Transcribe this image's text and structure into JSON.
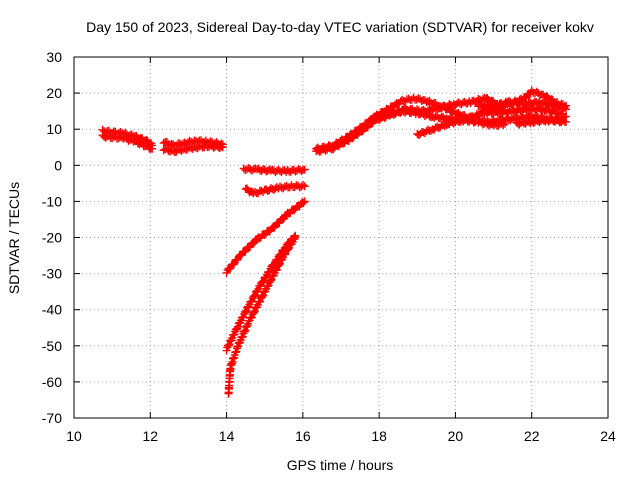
{
  "chart_data": {
    "type": "scatter",
    "title": "Day 150 of 2023, Sidereal Day-to-day VTEC variation (SDTVAR) for receiver kokv",
    "xlabel": "GPS time / hours",
    "ylabel": "SDTVAR / TECUs",
    "xlim": [
      10,
      24
    ],
    "ylim": [
      -70,
      30
    ],
    "xticks": [
      10,
      12,
      14,
      16,
      18,
      20,
      22,
      24
    ],
    "yticks": [
      -70,
      -60,
      -50,
      -40,
      -30,
      -20,
      -10,
      0,
      10,
      20,
      30
    ],
    "grid": true,
    "marker": "plus",
    "color": "#ff0000",
    "series": [
      {
        "tracks": [
          [
            [
              10.75,
              9.5
            ],
            [
              11.0,
              9.2
            ],
            [
              11.3,
              8.8
            ],
            [
              11.6,
              8.0
            ],
            [
              11.9,
              6.8
            ],
            [
              12.05,
              5.5
            ]
          ],
          [
            [
              10.75,
              8.0
            ],
            [
              11.0,
              7.8
            ],
            [
              11.3,
              7.5
            ],
            [
              11.6,
              6.6
            ],
            [
              11.9,
              5.2
            ],
            [
              12.05,
              4.6
            ]
          ],
          [
            [
              12.35,
              6.5
            ],
            [
              12.6,
              5.5
            ],
            [
              12.9,
              6.2
            ],
            [
              13.2,
              6.8
            ],
            [
              13.5,
              6.5
            ],
            [
              13.9,
              5.8
            ]
          ],
          [
            [
              12.35,
              4.5
            ],
            [
              12.6,
              3.8
            ],
            [
              12.9,
              4.5
            ],
            [
              13.2,
              5.0
            ],
            [
              13.5,
              5.3
            ],
            [
              13.9,
              5.0
            ]
          ],
          [
            [
              14.45,
              -1.0
            ],
            [
              14.8,
              -1.2
            ],
            [
              15.2,
              -1.5
            ],
            [
              15.6,
              -1.6
            ],
            [
              16.05,
              -1.2
            ]
          ],
          [
            [
              14.5,
              -6.5
            ],
            [
              14.7,
              -7.8
            ],
            [
              15.0,
              -7.0
            ],
            [
              15.4,
              -6.2
            ],
            [
              15.7,
              -5.8
            ],
            [
              16.05,
              -5.8
            ]
          ],
          [
            [
              14.0,
              -29.5
            ],
            [
              14.4,
              -24.5
            ],
            [
              14.8,
              -20.5
            ],
            [
              15.2,
              -17.5
            ],
            [
              15.6,
              -13.5
            ],
            [
              16.05,
              -10.0
            ]
          ],
          [
            [
              14.0,
              -51.0
            ],
            [
              14.3,
              -44.5
            ],
            [
              14.6,
              -38.5
            ],
            [
              14.9,
              -33.0
            ],
            [
              15.2,
              -28.0
            ],
            [
              15.55,
              -22.5
            ],
            [
              15.8,
              -19.5
            ]
          ],
          [
            [
              14.05,
              -63.5
            ],
            [
              14.1,
              -56.0
            ],
            [
              14.3,
              -50.0
            ],
            [
              14.6,
              -43.0
            ],
            [
              14.9,
              -37.0
            ],
            [
              15.2,
              -31.0
            ],
            [
              15.5,
              -25.0
            ],
            [
              15.8,
              -20.0
            ]
          ],
          [
            [
              16.35,
              4.5
            ],
            [
              16.8,
              5.5
            ],
            [
              17.2,
              8.0
            ],
            [
              17.6,
              11.0
            ],
            [
              17.9,
              13.5
            ],
            [
              18.3,
              16.0
            ],
            [
              18.6,
              17.8
            ],
            [
              18.9,
              18.5
            ],
            [
              19.2,
              18.0
            ],
            [
              19.6,
              16.5
            ],
            [
              20.0,
              14.5
            ],
            [
              20.4,
              13.0
            ],
            [
              20.8,
              12.0
            ],
            [
              21.2,
              12.5
            ],
            [
              21.6,
              13.0
            ],
            [
              22.0,
              13.5
            ],
            [
              22.4,
              13.0
            ],
            [
              22.8,
              12.5
            ]
          ],
          [
            [
              16.35,
              3.8
            ],
            [
              16.8,
              4.8
            ],
            [
              17.2,
              7.0
            ],
            [
              17.6,
              10.0
            ],
            [
              17.9,
              12.5
            ],
            [
              18.3,
              14.0
            ],
            [
              18.6,
              15.0
            ],
            [
              19.0,
              14.5
            ],
            [
              19.4,
              13.5
            ],
            [
              19.8,
              13.0
            ],
            [
              20.2,
              12.5
            ],
            [
              20.6,
              12.0
            ],
            [
              21.0,
              11.0
            ],
            [
              21.3,
              11.5
            ]
          ],
          [
            [
              17.8,
              12.8
            ],
            [
              18.2,
              13.8
            ],
            [
              18.7,
              15.5
            ],
            [
              19.2,
              15.0
            ],
            [
              19.6,
              16.0
            ],
            [
              20.0,
              17.0
            ],
            [
              20.4,
              17.5
            ],
            [
              20.8,
              18.5
            ],
            [
              21.1,
              17.0
            ]
          ],
          [
            [
              19.0,
              8.5
            ],
            [
              19.4,
              10.0
            ],
            [
              19.8,
              11.5
            ],
            [
              20.2,
              12.5
            ],
            [
              20.6,
              14.0
            ],
            [
              21.0,
              15.5
            ],
            [
              21.4,
              17.0
            ],
            [
              21.8,
              18.5
            ],
            [
              22.0,
              20.5
            ],
            [
              22.3,
              19.5
            ],
            [
              22.7,
              17.0
            ],
            [
              22.9,
              16.5
            ]
          ],
          [
            [
              20.6,
              16.5
            ],
            [
              21.0,
              16.5
            ],
            [
              21.4,
              17.5
            ],
            [
              21.8,
              17.0
            ],
            [
              22.2,
              17.5
            ],
            [
              22.6,
              16.5
            ],
            [
              22.9,
              15.5
            ]
          ],
          [
            [
              20.7,
              15.0
            ],
            [
              21.1,
              14.5
            ],
            [
              21.5,
              15.0
            ],
            [
              21.9,
              15.5
            ],
            [
              22.3,
              15.5
            ],
            [
              22.7,
              14.5
            ],
            [
              22.9,
              13.5
            ]
          ],
          [
            [
              21.6,
              11.5
            ],
            [
              22.0,
              12.0
            ],
            [
              22.4,
              12.5
            ],
            [
              22.9,
              12.0
            ]
          ]
        ]
      }
    ]
  }
}
